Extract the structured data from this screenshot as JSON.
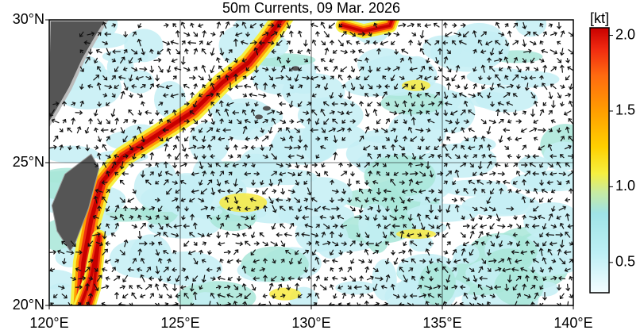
{
  "map": {
    "title": "50m Currents, 09 Mar. 2026",
    "xlim": [
      120,
      140
    ],
    "ylim": [
      20,
      30
    ],
    "xticks": [
      {
        "value": 120,
        "label": "120°E"
      },
      {
        "value": 125,
        "label": "125°E"
      },
      {
        "value": 130,
        "label": "130°E"
      },
      {
        "value": 135,
        "label": "135°E"
      },
      {
        "value": 140,
        "label": "140°E"
      }
    ],
    "yticks": [
      {
        "value": 20,
        "label": "20°N"
      },
      {
        "value": 25,
        "label": "25°N"
      },
      {
        "value": 30,
        "label": "30°N"
      }
    ],
    "grid": true,
    "colorbar": {
      "unit": "[kt]",
      "lim": [
        0.3,
        2.05
      ],
      "ticks": [
        0.5,
        {
          "value": 1.0,
          "label": "1.0"
        },
        1.5,
        {
          "value": 2.0,
          "label": "2.0"
        }
      ]
    }
  }
}
